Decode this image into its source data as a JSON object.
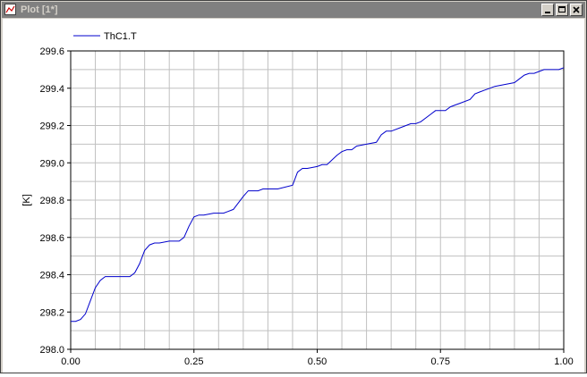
{
  "window": {
    "title": "Plot [1*]",
    "icons": {
      "app": "plot-window-icon",
      "minimize": "minimize-icon",
      "maximize": "maximize-icon",
      "close": "close-icon"
    }
  },
  "colors": {
    "series": "#0000cc",
    "grid": "#c0c0c0",
    "titlebar": "#808080",
    "frame": "#d4d0c8"
  },
  "chart_data": {
    "type": "line",
    "title": "",
    "xlabel": "",
    "ylabel": "[K]",
    "xlim": [
      0.0,
      1.0
    ],
    "ylim": [
      298.0,
      299.6
    ],
    "xticks": [
      "0.00",
      "0.25",
      "0.50",
      "0.75",
      "1.00"
    ],
    "yticks": [
      "298.0",
      "298.2",
      "298.4",
      "298.6",
      "298.8",
      "299.0",
      "299.2",
      "299.4",
      "299.6"
    ],
    "grid": true,
    "legend_position": "top-left",
    "series": [
      {
        "name": "ThC1.T",
        "x": [
          0.0,
          0.01,
          0.02,
          0.03,
          0.04,
          0.05,
          0.06,
          0.07,
          0.08,
          0.1,
          0.12,
          0.13,
          0.14,
          0.15,
          0.16,
          0.17,
          0.18,
          0.2,
          0.22,
          0.23,
          0.24,
          0.25,
          0.26,
          0.27,
          0.29,
          0.31,
          0.33,
          0.35,
          0.36,
          0.37,
          0.38,
          0.39,
          0.42,
          0.45,
          0.46,
          0.47,
          0.48,
          0.5,
          0.51,
          0.52,
          0.54,
          0.55,
          0.56,
          0.57,
          0.58,
          0.6,
          0.62,
          0.63,
          0.64,
          0.65,
          0.67,
          0.68,
          0.69,
          0.7,
          0.71,
          0.73,
          0.74,
          0.76,
          0.77,
          0.78,
          0.79,
          0.81,
          0.82,
          0.83,
          0.84,
          0.85,
          0.86,
          0.88,
          0.9,
          0.91,
          0.92,
          0.93,
          0.94,
          0.95,
          0.96,
          0.97,
          0.99,
          1.0
        ],
        "y": [
          298.15,
          298.15,
          298.16,
          298.19,
          298.26,
          298.33,
          298.37,
          298.39,
          298.39,
          298.39,
          298.39,
          298.41,
          298.46,
          298.53,
          298.56,
          298.57,
          298.57,
          298.58,
          298.58,
          298.6,
          298.66,
          298.71,
          298.72,
          298.72,
          298.73,
          298.73,
          298.75,
          298.82,
          298.85,
          298.85,
          298.85,
          298.86,
          298.86,
          298.88,
          298.95,
          298.97,
          298.97,
          298.98,
          298.99,
          298.99,
          299.04,
          299.06,
          299.07,
          299.07,
          299.09,
          299.1,
          299.11,
          299.15,
          299.17,
          299.17,
          299.19,
          299.2,
          299.21,
          299.21,
          299.22,
          299.26,
          299.28,
          299.28,
          299.3,
          299.31,
          299.32,
          299.34,
          299.37,
          299.38,
          299.39,
          299.4,
          299.41,
          299.42,
          299.43,
          299.45,
          299.47,
          299.48,
          299.48,
          299.49,
          299.5,
          299.5,
          299.5,
          299.51
        ]
      }
    ]
  }
}
